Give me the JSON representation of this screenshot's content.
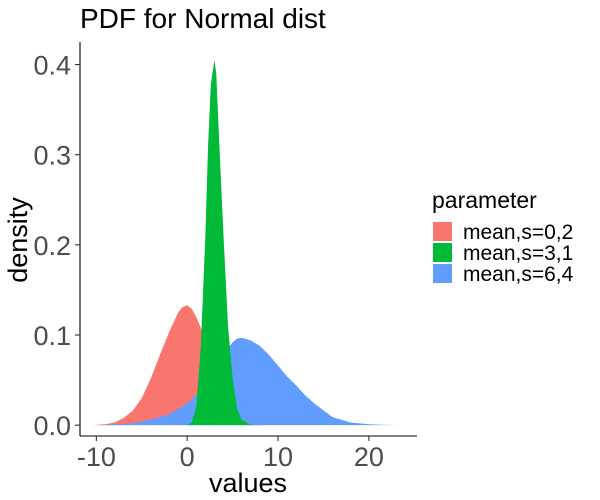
{
  "chart_data": {
    "type": "area",
    "title": "PDF for Normal dist",
    "xlabel": "values",
    "ylabel": "density",
    "xlim": [
      -11.8,
      25.3
    ],
    "ylim": [
      -0.012,
      0.425
    ],
    "x_ticks": [
      -10,
      0,
      10,
      20
    ],
    "x_tick_labels": [
      "-10",
      "0",
      "10",
      "20"
    ],
    "y_ticks": [
      0.0,
      0.1,
      0.2,
      0.3,
      0.4
    ],
    "y_tick_labels": [
      "0.0",
      "0.1",
      "0.2",
      "0.3",
      "0.4"
    ],
    "grid": false,
    "legend": {
      "title": "parameter",
      "position": "right"
    },
    "series": [
      {
        "name": "mean,s=0,2",
        "color": "#F8766D",
        "x": [
          -10.5,
          -9,
          -8,
          -7,
          -6,
          -5,
          -4,
          -3,
          -2,
          -1,
          -0.5,
          0,
          0.5,
          1,
          1.5,
          2,
          2.5,
          3,
          3.5,
          4,
          5,
          6,
          7,
          8,
          9,
          10
        ],
        "y": [
          0.0,
          0.001,
          0.003,
          0.008,
          0.016,
          0.03,
          0.052,
          0.078,
          0.103,
          0.125,
          0.131,
          0.133,
          0.129,
          0.12,
          0.108,
          0.088,
          0.065,
          0.044,
          0.028,
          0.016,
          0.005,
          0.0015,
          0.0005,
          0.0002,
          0.0001,
          0.0
        ]
      },
      {
        "name": "mean,s=6,4",
        "color": "#619CFF",
        "x": [
          -10,
          -8,
          -6,
          -4,
          -2,
          0,
          1,
          2,
          3,
          4,
          5,
          5.5,
          6,
          7,
          8,
          9,
          10,
          11,
          12,
          13,
          14,
          16,
          18,
          20,
          22,
          23.5
        ],
        "y": [
          0.0,
          0.001,
          0.002,
          0.006,
          0.012,
          0.024,
          0.034,
          0.046,
          0.062,
          0.078,
          0.092,
          0.096,
          0.097,
          0.094,
          0.088,
          0.078,
          0.066,
          0.054,
          0.044,
          0.033,
          0.024,
          0.009,
          0.003,
          0.001,
          0.0003,
          0.0
        ]
      },
      {
        "name": "mean,s=3,1",
        "color": "#00BA38",
        "x": [
          -10,
          0,
          0.5,
          1,
          1.5,
          2,
          2.3,
          2.6,
          3,
          3.2,
          3.5,
          4,
          4.5,
          5,
          5.5,
          6,
          7,
          8
        ],
        "y": [
          0.0,
          0.0,
          0.003,
          0.02,
          0.087,
          0.21,
          0.31,
          0.378,
          0.405,
          0.39,
          0.32,
          0.21,
          0.11,
          0.052,
          0.018,
          0.006,
          0.0005,
          0.0
        ]
      }
    ]
  }
}
